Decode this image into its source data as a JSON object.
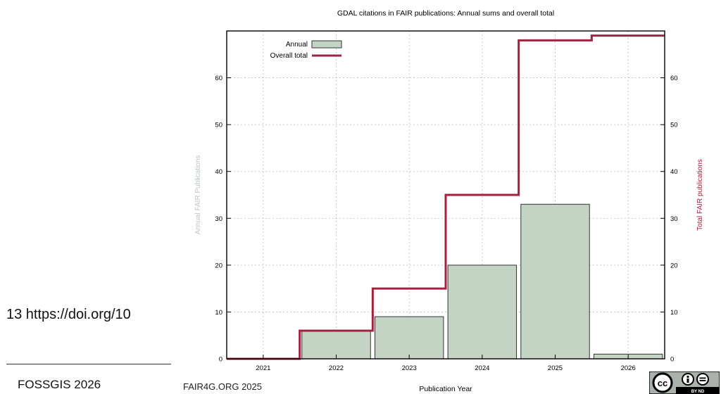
{
  "slide": {
    "url_text": "13 https://doi.org/10",
    "footer_left": "FOSSGIS 2026",
    "footer_mid": "FAIR4G.ORG 2025",
    "license_icon": "cc-by-nd-icon",
    "license_text_cc": "cc",
    "license_text_small": "BY ND"
  },
  "chart_data": {
    "type": "bar",
    "title": "GDAL citations in FAIR publications: Annual sums and overall total",
    "xlabel": "Publication Year",
    "ylabel_left": "Annual FAIR Publications",
    "ylabel_right": "Total FAIR publications",
    "categories": [
      "2021",
      "2022",
      "2023",
      "2024",
      "2025",
      "2026"
    ],
    "ylim": [
      0,
      70
    ],
    "yticks": [
      0,
      10,
      20,
      30,
      40,
      50,
      60
    ],
    "grid": true,
    "legend_position": "top-left",
    "series": [
      {
        "name": "Annual",
        "kind": "bar",
        "values": [
          0,
          6,
          9,
          20,
          33,
          1
        ],
        "color": "#c3d3c4"
      },
      {
        "name": "Overall total",
        "kind": "step",
        "values": [
          0,
          6,
          15,
          35,
          68,
          69
        ],
        "color": "#a4203f"
      }
    ],
    "colors": {
      "ylabel_left": "#b8c8b8",
      "ylabel_right": "#a4203f",
      "bar_stroke": "#333333",
      "grid": "#bbbbbb"
    }
  }
}
